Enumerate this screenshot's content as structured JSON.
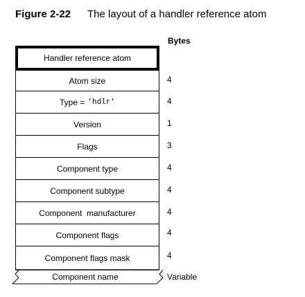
{
  "figure": {
    "label": "Figure 2-22",
    "caption": "The layout of a handler reference atom"
  },
  "bytes_header": "Bytes",
  "header_row": {
    "label": "Handler reference atom"
  },
  "fields": [
    {
      "label": "Atom size",
      "bytes": "4"
    },
    {
      "label": "Type = ",
      "code": "'hdlr'",
      "bytes": "4"
    },
    {
      "label": "Version",
      "bytes": "1"
    },
    {
      "label": "Flags",
      "bytes": "3"
    },
    {
      "label": "Component type",
      "bytes": "4"
    },
    {
      "label": "Component subtype",
      "bytes": "4"
    },
    {
      "label": "Component  manufacturer",
      "bytes": "4"
    },
    {
      "label": "Component flags",
      "bytes": "4"
    },
    {
      "label": "Component flags mask",
      "bytes": "4"
    }
  ],
  "last_field": {
    "label": "Component name",
    "bytes": "Variable"
  }
}
